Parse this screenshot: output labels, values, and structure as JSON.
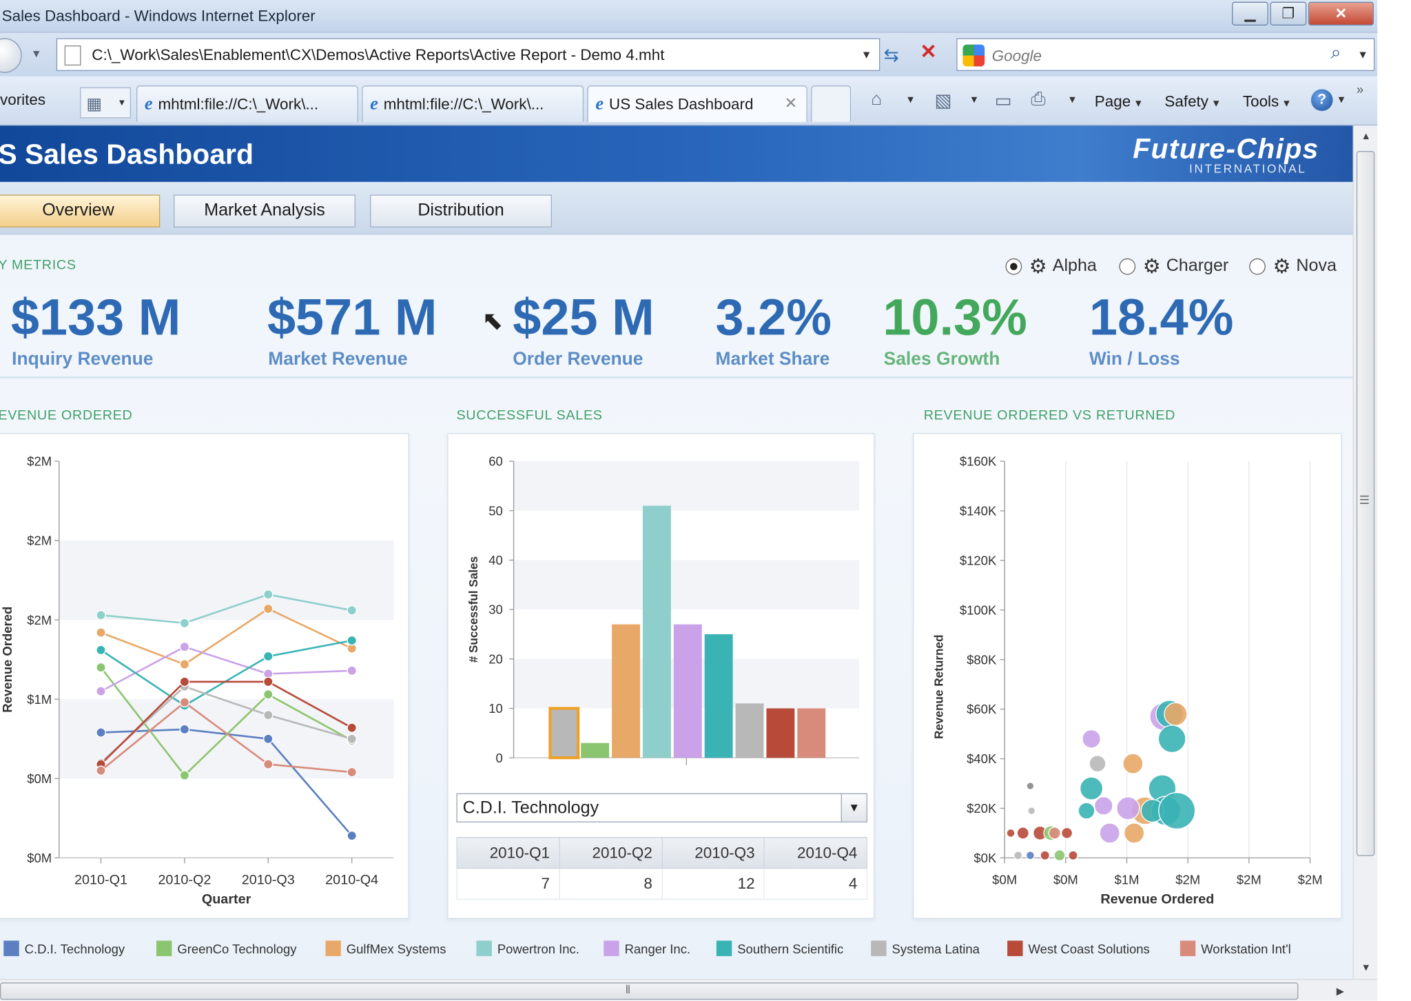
{
  "window": {
    "title": "Sales Dashboard - Windows Internet Explorer",
    "address": "C:\\_Work\\Sales\\Enablement\\CX\\Demos\\Active Reports\\Active Report - Demo 4.mht",
    "search_placeholder": "Google",
    "favorites_label": "vorites",
    "tabs": [
      {
        "label": "mhtml:file://C:\\_Work\\..."
      },
      {
        "label": "mhtml:file://C:\\_Work\\..."
      },
      {
        "label": "US Sales Dashboard"
      }
    ],
    "commands": {
      "page": "Page",
      "safety": "Safety",
      "tools": "Tools"
    }
  },
  "dashboard": {
    "title": "S Sales Dashboard",
    "logo": "Future-Chips",
    "logo_sub": "INTERNATIONAL",
    "nav_tabs": [
      "Overview",
      "Market Analysis",
      "Distribution"
    ],
    "active_tab": "Overview",
    "metrics_heading": "Y METRICS",
    "products": [
      {
        "label": "Alpha",
        "selected": true
      },
      {
        "label": "Charger",
        "selected": false
      },
      {
        "label": "Nova",
        "selected": false
      }
    ],
    "kpis": [
      {
        "value": "$133 M",
        "label": "Inquiry Revenue",
        "color": "blue"
      },
      {
        "value": "$571 M",
        "label": "Market Revenue",
        "color": "blue"
      },
      {
        "value": "$25 M",
        "label": "Order Revenue",
        "color": "blue"
      },
      {
        "value": "3.2%",
        "label": "Market Share",
        "color": "blue"
      },
      {
        "value": "10.3%",
        "label": "Sales Growth",
        "color": "green"
      },
      {
        "value": "18.4%",
        "label": "Win / Loss",
        "color": "blue"
      }
    ],
    "sections": {
      "revenue_ordered": "EVENUE ORDERED",
      "successful_sales": "SUCCESSFUL SALES",
      "ordered_vs_returned": "REVENUE ORDERED VS RETURNED"
    },
    "selected_company": "C.D.I. Technology",
    "quarter_table": {
      "headers": [
        "2010-Q1",
        "2010-Q2",
        "2010-Q3",
        "2010-Q4"
      ],
      "values": [
        "7",
        "8",
        "12",
        "4"
      ]
    },
    "legend": [
      {
        "name": "C.D.I. Technology",
        "color": "#5b7fc0"
      },
      {
        "name": "GreenCo Technology",
        "color": "#8cc56f"
      },
      {
        "name": "GulfMex Systems",
        "color": "#e8a868"
      },
      {
        "name": "Powertron Inc.",
        "color": "#8ecfcc"
      },
      {
        "name": "Ranger Inc.",
        "color": "#c9a2e8"
      },
      {
        "name": "Southern Scientific",
        "color": "#3ab3b5"
      },
      {
        "name": "Systema Latina",
        "color": "#b8b8b8"
      },
      {
        "name": "West Coast Solutions",
        "color": "#b84a3a"
      },
      {
        "name": "Workstation Int'l",
        "color": "#d98b7b"
      }
    ]
  },
  "chart_data": [
    {
      "type": "line",
      "title": "EVENUE ORDERED",
      "xlabel": "Quarter",
      "ylabel": "Revenue Ordered",
      "categories": [
        "2010-Q1",
        "2010-Q2",
        "2010-Q3",
        "2010-Q4"
      ],
      "y_tick_labels": [
        "$0M",
        "$0M",
        "$1M",
        "$2M",
        "$2M",
        "$2M"
      ],
      "ylim": [
        0,
        2.5
      ],
      "series": [
        {
          "name": "C.D.I. Technology",
          "color": "#5b7fc0",
          "values": [
            0.79,
            0.81,
            0.75,
            0.14
          ]
        },
        {
          "name": "GreenCo Technology",
          "color": "#8cc56f",
          "values": [
            1.2,
            0.52,
            1.03,
            0.74
          ]
        },
        {
          "name": "GulfMex Systems",
          "color": "#e8a868",
          "values": [
            1.42,
            1.22,
            1.57,
            1.32
          ]
        },
        {
          "name": "Powertron Inc.",
          "color": "#8ecfcc",
          "values": [
            1.53,
            1.48,
            1.66,
            1.56
          ]
        },
        {
          "name": "Ranger Inc.",
          "color": "#c9a2e8",
          "values": [
            1.05,
            1.33,
            1.16,
            1.18
          ]
        },
        {
          "name": "Southern Scientific",
          "color": "#3ab3b5",
          "values": [
            1.31,
            0.96,
            1.27,
            1.37
          ]
        },
        {
          "name": "Systema Latina",
          "color": "#b8b8b8",
          "values": [
            0.6,
            1.08,
            0.9,
            0.75
          ]
        },
        {
          "name": "West Coast Solutions",
          "color": "#b84a3a",
          "values": [
            0.59,
            1.11,
            1.11,
            0.82
          ]
        },
        {
          "name": "Workstation Int'l",
          "color": "#d98b7b",
          "values": [
            0.55,
            0.98,
            0.59,
            0.54
          ]
        }
      ]
    },
    {
      "type": "bar",
      "title": "SUCCESSFUL SALES",
      "ylabel": "# Successful Sales",
      "ylim": [
        0,
        60
      ],
      "y_ticks": [
        0,
        10,
        20,
        30,
        40,
        50,
        60
      ],
      "categories": [
        "C.D.I. Technology",
        "GreenCo Technology",
        "GulfMex Systems",
        "Powertron Inc.",
        "Ranger Inc.",
        "Southern Scientific",
        "Systema Latina",
        "West Coast Solutions",
        "Workstation Int'l"
      ],
      "values": [
        10,
        3,
        27,
        51,
        27,
        25,
        11,
        10,
        10
      ],
      "colors": [
        "#b8b8b8",
        "#8cc56f",
        "#e8a868",
        "#8ecfcc",
        "#c9a2e8",
        "#3ab3b5",
        "#b8b8b8",
        "#b84a3a",
        "#d98b7b"
      ],
      "highlighted": "C.D.I. Technology"
    },
    {
      "type": "scatter",
      "title": "REVENUE ORDERED VS RETURNED",
      "xlabel": "Revenue Ordered",
      "ylabel": "Revenue Returned",
      "x_tick_labels": [
        "$0M",
        "$0M",
        "$1M",
        "$2M",
        "$2M",
        "$2M"
      ],
      "y_tick_labels": [
        "$0K",
        "$20K",
        "$40K",
        "$60K",
        "$80K",
        "$100K",
        "$120K",
        "$140K",
        "$160K"
      ],
      "xlim": [
        0,
        2.5
      ],
      "ylim": [
        0,
        160
      ],
      "points": [
        {
          "x": 1.3,
          "y": 57,
          "r": 3,
          "color": "#c9a2e8"
        },
        {
          "x": 1.35,
          "y": 58,
          "r": 3,
          "color": "#3ab3b5"
        },
        {
          "x": 1.4,
          "y": 58,
          "r": 2.5,
          "color": "#e8a868"
        },
        {
          "x": 1.37,
          "y": 48,
          "r": 3,
          "color": "#3ab3b5"
        },
        {
          "x": 0.71,
          "y": 48,
          "r": 2,
          "color": "#c9a2e8"
        },
        {
          "x": 0.76,
          "y": 38,
          "r": 1.8,
          "color": "#b8b8b8"
        },
        {
          "x": 1.05,
          "y": 38,
          "r": 2.2,
          "color": "#e8a868"
        },
        {
          "x": 0.71,
          "y": 28,
          "r": 2.5,
          "color": "#3ab3b5"
        },
        {
          "x": 1.29,
          "y": 28,
          "r": 3,
          "color": "#3ab3b5"
        },
        {
          "x": 0.21,
          "y": 29,
          "r": 0.8,
          "color": "#888888"
        },
        {
          "x": 0.81,
          "y": 21,
          "r": 2,
          "color": "#c9a2e8"
        },
        {
          "x": 0.67,
          "y": 19,
          "r": 1.8,
          "color": "#3ab3b5"
        },
        {
          "x": 0.22,
          "y": 19,
          "r": 0.8,
          "color": "#b8b8b8"
        },
        {
          "x": 1.15,
          "y": 19,
          "r": 3,
          "color": "#e8a868"
        },
        {
          "x": 1.01,
          "y": 20,
          "r": 2.5,
          "color": "#c9a2e8"
        },
        {
          "x": 1.32,
          "y": 19,
          "r": 3.2,
          "color": "#3ab3b5"
        },
        {
          "x": 1.21,
          "y": 19,
          "r": 2.5,
          "color": "#3ab3b5"
        },
        {
          "x": 1.41,
          "y": 19,
          "r": 4,
          "color": "#3ab3b5"
        },
        {
          "x": 0.86,
          "y": 10,
          "r": 2.2,
          "color": "#c9a2e8"
        },
        {
          "x": 1.06,
          "y": 10,
          "r": 2.2,
          "color": "#e8a868"
        },
        {
          "x": 0.05,
          "y": 10,
          "r": 0.9,
          "color": "#b84a3a"
        },
        {
          "x": 0.15,
          "y": 10,
          "r": 1.3,
          "color": "#b84a3a"
        },
        {
          "x": 0.29,
          "y": 10,
          "r": 1.5,
          "color": "#b84a3a"
        },
        {
          "x": 0.38,
          "y": 10,
          "r": 1.6,
          "color": "#8cc56f"
        },
        {
          "x": 0.51,
          "y": 10,
          "r": 1.2,
          "color": "#b84a3a"
        },
        {
          "x": 0.41,
          "y": 10,
          "r": 1.3,
          "color": "#d98b7b"
        },
        {
          "x": 0.21,
          "y": 1,
          "r": 0.9,
          "color": "#5b7fc0"
        },
        {
          "x": 0.33,
          "y": 1,
          "r": 1,
          "color": "#b84a3a"
        },
        {
          "x": 0.45,
          "y": 1,
          "r": 1.2,
          "color": "#8cc56f"
        },
        {
          "x": 0.56,
          "y": 1,
          "r": 1,
          "color": "#b84a3a"
        },
        {
          "x": 0.11,
          "y": 1,
          "r": 0.9,
          "color": "#b8b8b8"
        }
      ]
    }
  ]
}
